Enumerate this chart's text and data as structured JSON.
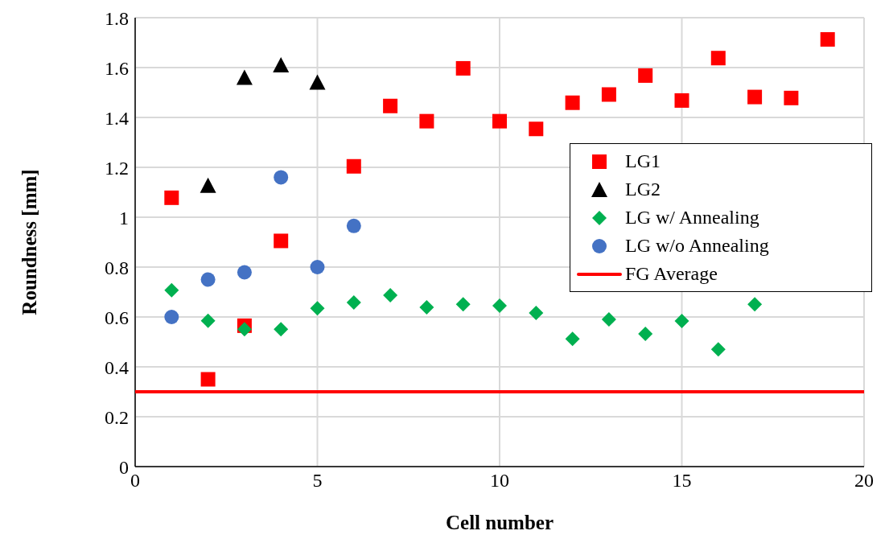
{
  "chart_data": {
    "type": "scatter",
    "xlabel": "Cell number",
    "ylabel": "Roundness [mm]",
    "xlim": [
      0,
      20
    ],
    "xticks": [
      0,
      5,
      10,
      15,
      20
    ],
    "ylim": [
      0,
      1.8
    ],
    "yticks": [
      0,
      0.2,
      0.4,
      0.6,
      0.8,
      1,
      1.2,
      1.4,
      1.6,
      1.8
    ],
    "grid": true,
    "legend": "right",
    "series": [
      {
        "name": "LG1",
        "color": "#ff0000",
        "marker": "square",
        "x": [
          1,
          2,
          3,
          4,
          6,
          7,
          8,
          9,
          10,
          11,
          12,
          13,
          14,
          15,
          16,
          17,
          18,
          19
        ],
        "values": [
          1.078,
          0.35,
          0.565,
          0.905,
          1.204,
          1.446,
          1.385,
          1.597,
          1.385,
          1.354,
          1.459,
          1.492,
          1.568,
          1.468,
          1.638,
          1.482,
          1.478,
          1.713
        ]
      },
      {
        "name": "LG2",
        "color": "#000000",
        "marker": "triangle",
        "x": [
          2,
          3,
          4,
          5
        ],
        "values": [
          1.127,
          1.56,
          1.61,
          1.54
        ]
      },
      {
        "name": "LG w/ Annealing",
        "color": "#00b050",
        "marker": "diamond",
        "x": [
          1,
          2,
          3,
          4,
          5,
          6,
          7,
          8,
          9,
          10,
          11,
          12,
          13,
          14,
          15,
          16,
          17
        ],
        "values": [
          0.707,
          0.585,
          0.551,
          0.551,
          0.635,
          0.658,
          0.687,
          0.639,
          0.651,
          0.645,
          0.616,
          0.512,
          0.59,
          0.532,
          0.584,
          0.47,
          0.651
        ]
      },
      {
        "name": "LG w/o Annealing",
        "color": "#4472c4",
        "marker": "circle",
        "x": [
          1,
          2,
          3,
          4,
          5,
          6
        ],
        "values": [
          0.6,
          0.75,
          0.779,
          1.16,
          0.8,
          0.965
        ]
      },
      {
        "name": "FG Average",
        "type": "line",
        "color": "#ff0000",
        "x": [
          0,
          20
        ],
        "values": [
          0.3,
          0.3
        ]
      }
    ]
  }
}
